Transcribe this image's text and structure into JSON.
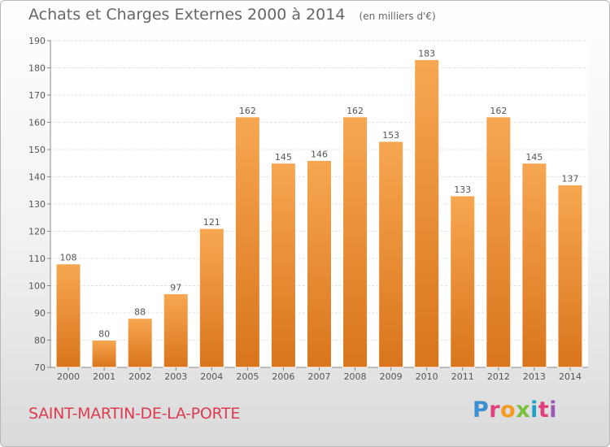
{
  "title": "Achats et Charges Externes 2000 à 2014",
  "subtitle": "(en milliers d'€)",
  "place": "SAINT-MARTIN-DE-LA-PORTE",
  "logo": {
    "letters": [
      "P",
      "r",
      "o",
      "x",
      "i",
      "t",
      "i"
    ]
  },
  "colors": {
    "bar_top": "#f7a751",
    "bar_bottom": "#d9751c",
    "text": "#555555",
    "place": "#dd3b50"
  },
  "chart_data": {
    "type": "bar",
    "categories": [
      "2000",
      "2001",
      "2002",
      "2003",
      "2004",
      "2005",
      "2006",
      "2007",
      "2008",
      "2009",
      "2010",
      "2011",
      "2012",
      "2013",
      "2014"
    ],
    "values": [
      108,
      80,
      88,
      97,
      121,
      162,
      145,
      146,
      162,
      153,
      183,
      133,
      162,
      145,
      137
    ],
    "data_labels": [
      "108",
      "80",
      "88",
      "97",
      "121",
      "162",
      "145",
      "146",
      "162",
      "153",
      "183",
      "133",
      "162",
      "145",
      "137"
    ],
    "ylim": [
      70,
      190
    ],
    "yticks": [
      70,
      80,
      90,
      100,
      110,
      120,
      130,
      140,
      150,
      160,
      170,
      180,
      190
    ],
    "title": "Achats et Charges Externes 2000 à 2014",
    "xlabel": "",
    "ylabel": "",
    "grid": true,
    "legend": "none"
  }
}
